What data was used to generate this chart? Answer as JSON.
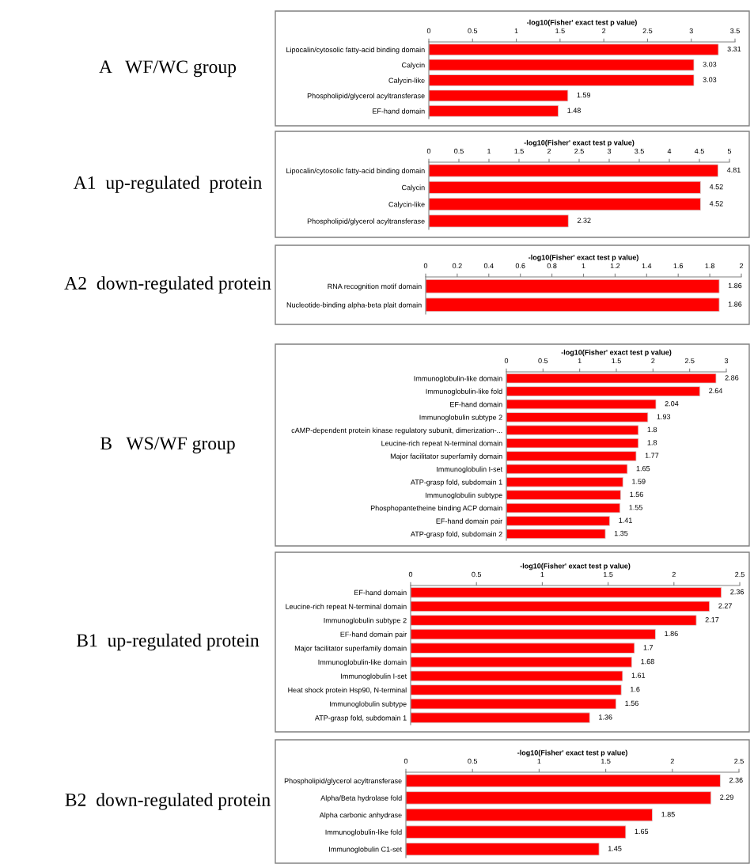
{
  "chart_data": [
    {
      "type": "bar",
      "orientation": "horizontal",
      "title": "A   WF/WC group",
      "xlabel": "-log10(Fisher' exact test p value)",
      "categories": [
        "Lipocalin/cytosolic fatty-acid binding domain",
        "Calycin",
        "Calycin-like",
        "Phospholipid/glycerol acyltransferase",
        "EF-hand domain"
      ],
      "values": [
        3.31,
        3.03,
        3.03,
        1.59,
        1.48
      ],
      "color": "#ff0000",
      "xlim": [
        0,
        3.5
      ],
      "xticks": [
        0,
        0.5,
        1,
        1.5,
        2,
        2.5,
        3,
        3.5
      ],
      "data_labels": true,
      "grid": false
    },
    {
      "type": "bar",
      "orientation": "horizontal",
      "title": "A1  up-regulated  protein",
      "xlabel": "-log10(Fisher' exact test p value)",
      "categories": [
        "Lipocalin/cytosolic fatty-acid binding domain",
        "Calycin",
        "Calycin-like",
        "Phospholipid/glycerol acyltransferase"
      ],
      "values": [
        4.81,
        4.52,
        4.52,
        2.32
      ],
      "color": "#ff0000",
      "xlim": [
        0,
        5
      ],
      "xticks": [
        0,
        0.5,
        1,
        1.5,
        2,
        2.5,
        3,
        3.5,
        4,
        4.5,
        5
      ],
      "data_labels": true,
      "grid": false
    },
    {
      "type": "bar",
      "orientation": "horizontal",
      "title": "A2  down-regulated protein",
      "xlabel": "-log10(Fisher' exact test p value)",
      "categories": [
        "RNA recognition motif domain",
        "Nucleotide-binding alpha-beta plait domain"
      ],
      "values": [
        1.86,
        1.86
      ],
      "color": "#ff0000",
      "xlim": [
        0,
        2
      ],
      "xticks": [
        0,
        0.2,
        0.4,
        0.6,
        0.8,
        1,
        1.2,
        1.4,
        1.6,
        1.8,
        2
      ],
      "data_labels": true,
      "grid": false
    },
    {
      "type": "bar",
      "orientation": "horizontal",
      "title": "B   WS/WF group",
      "xlabel": "-log10(Fisher' exact test p value)",
      "categories": [
        "Immunoglobulin-like domain",
        "Immunoglobulin-like fold",
        "EF-hand domain",
        "Immunoglobulin subtype 2",
        "cAMP-dependent protein kinase regulatory subunit, dimerization-...",
        "Leucine-rich repeat N-terminal domain",
        "Major facilitator superfamily domain",
        "Immunoglobulin I-set",
        "ATP-grasp fold, subdomain 1",
        "Immunoglobulin subtype",
        "Phosphopantetheine binding ACP domain",
        "EF-hand domain pair",
        "ATP-grasp fold, subdomain 2"
      ],
      "values": [
        2.86,
        2.64,
        2.04,
        1.93,
        1.8,
        1.8,
        1.77,
        1.65,
        1.59,
        1.56,
        1.55,
        1.41,
        1.35
      ],
      "color": "#ff0000",
      "xlim": [
        0,
        3
      ],
      "xticks": [
        0,
        0.5,
        1,
        1.5,
        2,
        2.5,
        3
      ],
      "data_labels": true,
      "grid": false
    },
    {
      "type": "bar",
      "orientation": "horizontal",
      "title": "B1  up-regulated protein",
      "xlabel": "-log10(Fisher' exact test p value)",
      "categories": [
        "EF-hand domain",
        "Leucine-rich repeat N-terminal domain",
        "Immunoglobulin subtype 2",
        "EF-hand domain pair",
        "Major facilitator superfamily domain",
        "Immunoglobulin-like domain",
        "Immunoglobulin I-set",
        "Heat shock protein Hsp90, N-terminal",
        "Immunoglobulin subtype",
        "ATP-grasp fold, subdomain 1"
      ],
      "values": [
        2.36,
        2.27,
        2.17,
        1.86,
        1.7,
        1.68,
        1.61,
        1.6,
        1.56,
        1.36
      ],
      "color": "#ff0000",
      "xlim": [
        0,
        2.5
      ],
      "xticks": [
        0,
        0.5,
        1,
        1.5,
        2,
        2.5
      ],
      "data_labels": true,
      "grid": false
    },
    {
      "type": "bar",
      "orientation": "horizontal",
      "title": "B2  down-regulated protein",
      "xlabel": "-log10(Fisher' exact test p value)",
      "categories": [
        "Phospholipid/glycerol acyltransferase",
        "Alpha/Beta hydrolase fold",
        "Alpha carbonic anhydrase",
        "Immunoglobulin-like fold",
        "Immunoglobulin C1-set"
      ],
      "values": [
        2.36,
        2.29,
        1.85,
        1.65,
        1.45
      ],
      "color": "#ff0000",
      "xlim": [
        0,
        2.5
      ],
      "xticks": [
        0,
        0.5,
        1,
        1.5,
        2,
        2.5
      ],
      "data_labels": true,
      "grid": false
    }
  ]
}
